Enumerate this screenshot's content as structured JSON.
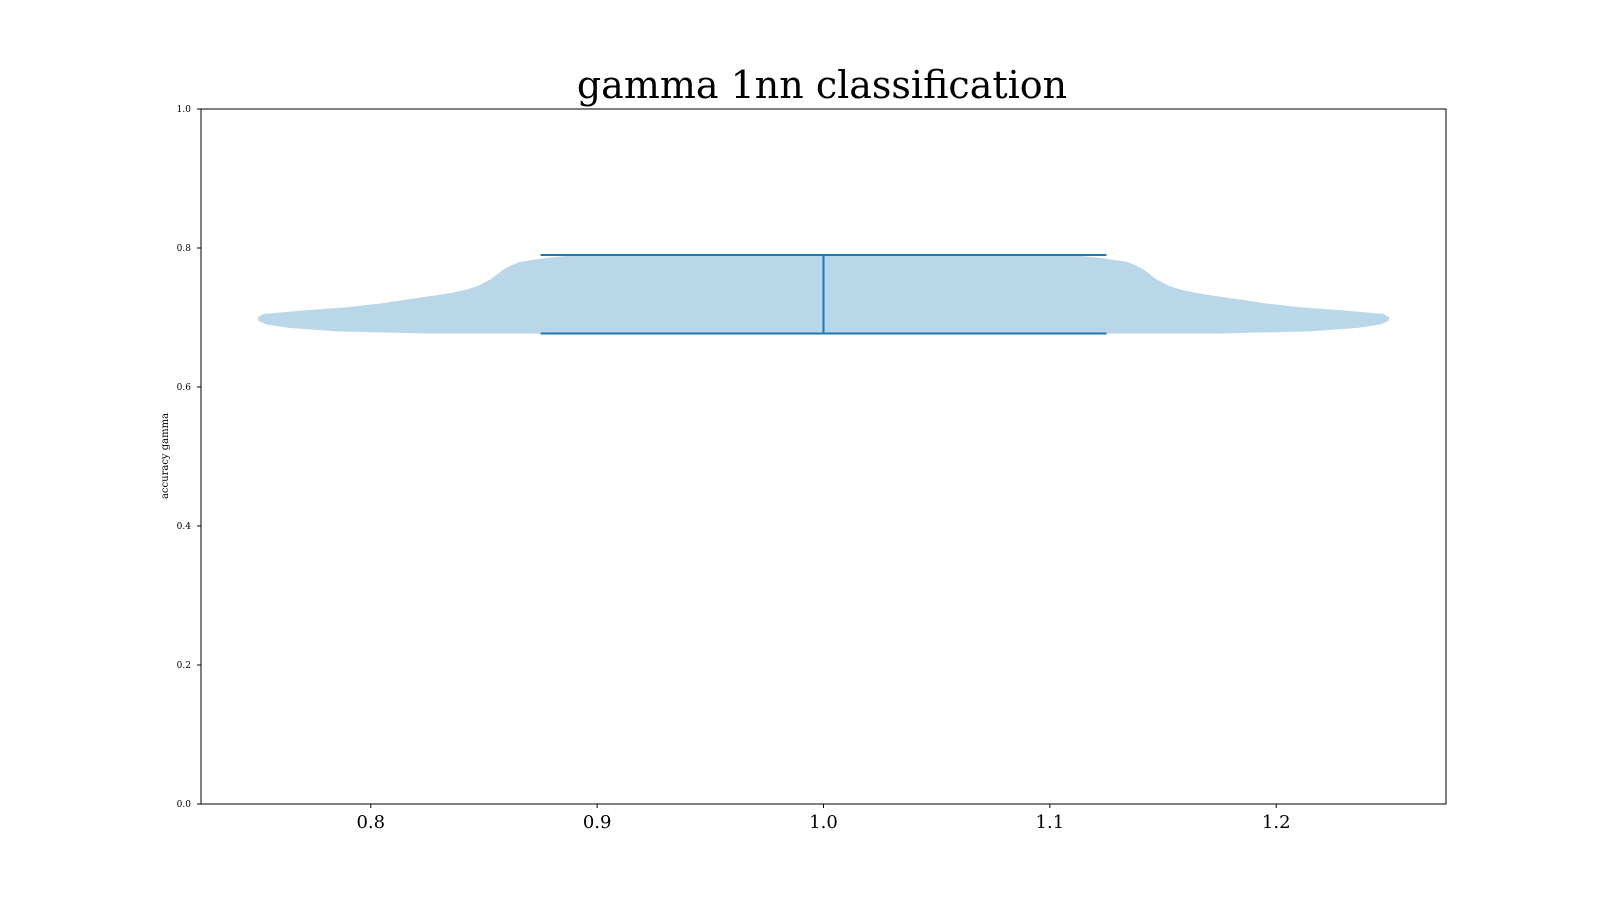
{
  "chart_data": {
    "type": "violin",
    "title": "gamma 1nn classification",
    "xlabel": "",
    "ylabel": "accuracy gamma",
    "xlim": [
      0.725,
      1.275
    ],
    "ylim": [
      0.0,
      1.0
    ],
    "xticks": [
      0.8,
      0.9,
      1.0,
      1.1,
      1.2
    ],
    "xtick_labels": [
      "0.8",
      "0.9",
      "1.0",
      "1.1",
      "1.2"
    ],
    "yticks": [
      0.0,
      0.2,
      0.4,
      0.6,
      0.8,
      1.0
    ],
    "ytick_labels": [
      "0.0",
      "0.2",
      "0.4",
      "0.6",
      "0.8",
      "1.0"
    ],
    "grid": false,
    "colors": {
      "body": "#bad6e9",
      "lines": "#1f77b4",
      "axes": "#000000"
    },
    "violins": [
      {
        "position": 1.0,
        "min": 0.677,
        "max": 0.79,
        "center_line_max": 0.79,
        "cap_halfwidth": 0.125,
        "density": [
          {
            "y": 0.677,
            "halfwidth": 0.175
          },
          {
            "y": 0.68,
            "halfwidth": 0.215
          },
          {
            "y": 0.685,
            "halfwidth": 0.236
          },
          {
            "y": 0.69,
            "halfwidth": 0.246
          },
          {
            "y": 0.695,
            "halfwidth": 0.2495
          },
          {
            "y": 0.7,
            "halfwidth": 0.25
          },
          {
            "y": 0.705,
            "halfwidth": 0.2475
          },
          {
            "y": 0.71,
            "halfwidth": 0.23
          },
          {
            "y": 0.715,
            "halfwidth": 0.21
          },
          {
            "y": 0.72,
            "halfwidth": 0.196
          },
          {
            "y": 0.725,
            "halfwidth": 0.186
          },
          {
            "y": 0.73,
            "halfwidth": 0.175
          },
          {
            "y": 0.735,
            "halfwidth": 0.165
          },
          {
            "y": 0.74,
            "halfwidth": 0.158
          },
          {
            "y": 0.745,
            "halfwidth": 0.153
          },
          {
            "y": 0.75,
            "halfwidth": 0.15
          },
          {
            "y": 0.755,
            "halfwidth": 0.147
          },
          {
            "y": 0.76,
            "halfwidth": 0.145
          },
          {
            "y": 0.765,
            "halfwidth": 0.143
          },
          {
            "y": 0.77,
            "halfwidth": 0.141
          },
          {
            "y": 0.775,
            "halfwidth": 0.138
          },
          {
            "y": 0.78,
            "halfwidth": 0.134
          },
          {
            "y": 0.785,
            "halfwidth": 0.124
          },
          {
            "y": 0.79,
            "halfwidth": 0.11
          }
        ]
      }
    ]
  }
}
